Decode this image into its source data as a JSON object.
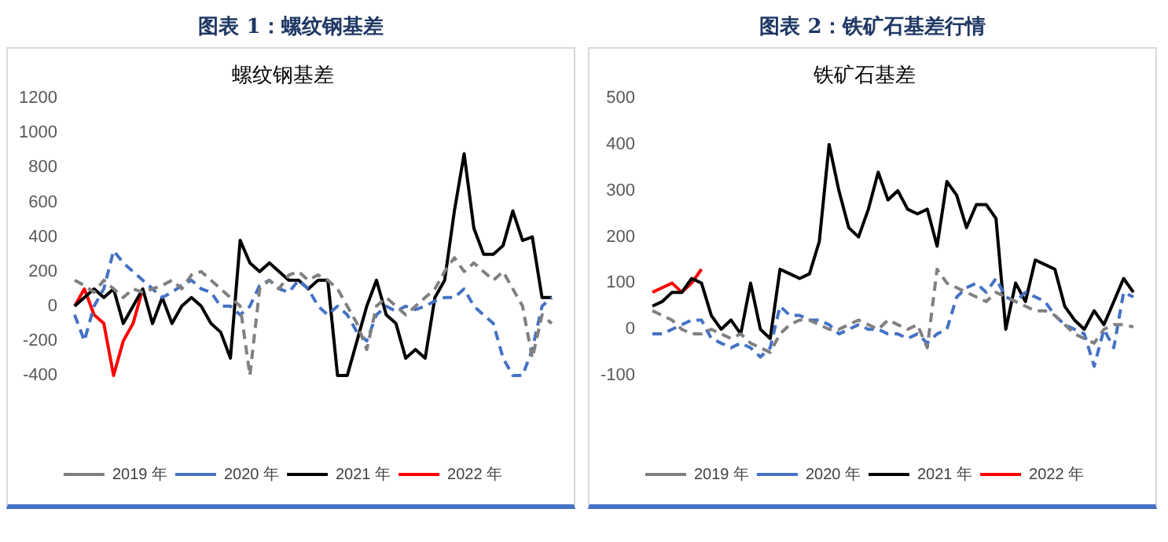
{
  "chart_data": [
    {
      "type": "line",
      "title": "图表 1：螺纹钢基差",
      "subtitle": "螺纹钢基差",
      "categories": [
        null,
        null,
        null,
        null,
        null,
        null,
        null,
        null,
        null,
        null,
        null,
        null,
        null,
        null,
        null,
        null,
        null,
        null,
        null,
        null,
        null,
        null,
        null,
        null,
        null,
        null,
        null,
        null,
        null,
        null,
        null,
        null,
        null,
        null,
        null,
        null,
        null,
        null,
        null,
        null,
        null,
        null,
        null,
        null,
        null,
        null,
        null,
        null,
        null,
        null
      ],
      "ylim": [
        -400,
        1200
      ],
      "yticks": [
        -400,
        -200,
        0,
        200,
        400,
        600,
        800,
        1000,
        1200
      ],
      "tick_labels": "y",
      "grid": false,
      "legend": "bottom",
      "marker": "none",
      "series": [
        {
          "name": "2019 年",
          "color": "#808080",
          "line_style": "dashed",
          "values": [
            150,
            120,
            80,
            150,
            100,
            50,
            100,
            80,
            100,
            120,
            150,
            100,
            180,
            200,
            150,
            100,
            50,
            0,
            -400,
            100,
            150,
            100,
            180,
            200,
            150,
            180,
            150,
            100,
            0,
            -100,
            -250,
            0,
            50,
            0,
            -50,
            0,
            50,
            100,
            200,
            280,
            200,
            250,
            200,
            150,
            200,
            100,
            0,
            -300,
            -50,
            -100
          ]
        },
        {
          "name": "2020 年",
          "color": "#4472c4",
          "line_style": "dashed",
          "values": [
            -50,
            -200,
            0,
            100,
            320,
            250,
            200,
            150,
            100,
            50,
            80,
            120,
            150,
            100,
            80,
            0,
            0,
            -50,
            0,
            120,
            150,
            100,
            80,
            150,
            100,
            0,
            -50,
            0,
            -50,
            -150,
            -200,
            -50,
            0,
            -30,
            0,
            -20,
            0,
            30,
            50,
            50,
            100,
            0,
            -50,
            -100,
            -300,
            -400,
            -400,
            -250,
            0,
            50
          ]
        },
        {
          "name": "2021 年",
          "color": "#000000",
          "line_style": "solid",
          "values": [
            0,
            50,
            100,
            50,
            100,
            -100,
            0,
            100,
            -100,
            50,
            -100,
            0,
            50,
            0,
            -100,
            -150,
            -300,
            380,
            250,
            200,
            250,
            200,
            150,
            150,
            100,
            150,
            150,
            -400,
            -400,
            -200,
            0,
            150,
            -50,
            -100,
            -300,
            -250,
            -300,
            50,
            150,
            550,
            880,
            450,
            300,
            300,
            350,
            550,
            380,
            400,
            50,
            50
          ]
        },
        {
          "name": "2022 年",
          "color": "#ff0000",
          "line_style": "solid",
          "values": [
            0,
            100,
            -50,
            -100,
            -400,
            -200,
            -100,
            100,
            null,
            null,
            null,
            null,
            null,
            null,
            null,
            null,
            null,
            null,
            null,
            null,
            null,
            null,
            null,
            null,
            null,
            null,
            null,
            null,
            null,
            null,
            null,
            null,
            null,
            null,
            null,
            null,
            null,
            null,
            null,
            null,
            null,
            null,
            null,
            null,
            null,
            null,
            null,
            null,
            null,
            null
          ]
        }
      ]
    },
    {
      "type": "line",
      "title": "图表 2：铁矿石基差行情",
      "subtitle": "铁矿石基差",
      "categories": [
        null,
        null,
        null,
        null,
        null,
        null,
        null,
        null,
        null,
        null,
        null,
        null,
        null,
        null,
        null,
        null,
        null,
        null,
        null,
        null,
        null,
        null,
        null,
        null,
        null,
        null,
        null,
        null,
        null,
        null,
        null,
        null,
        null,
        null,
        null,
        null,
        null,
        null,
        null,
        null,
        null,
        null,
        null,
        null,
        null,
        null,
        null,
        null,
        null,
        null
      ],
      "ylim": [
        -100,
        500
      ],
      "yticks": [
        -100,
        0,
        100,
        200,
        300,
        400,
        500
      ],
      "tick_labels": "y",
      "grid": false,
      "legend": "bottom",
      "marker": "none",
      "series": [
        {
          "name": "2019 年",
          "color": "#808080",
          "line_style": "dashed",
          "values": [
            40,
            30,
            20,
            0,
            -10,
            -10,
            0,
            -10,
            -20,
            -10,
            -30,
            -40,
            -50,
            -10,
            10,
            20,
            20,
            10,
            0,
            0,
            10,
            20,
            10,
            0,
            20,
            10,
            0,
            10,
            -40,
            130,
            100,
            90,
            80,
            70,
            60,
            80,
            70,
            60,
            50,
            40,
            40,
            30,
            10,
            -10,
            -20,
            -30,
            0,
            10,
            10,
            5
          ]
        },
        {
          "name": "2020 年",
          "color": "#4472c4",
          "line_style": "dashed",
          "values": [
            -10,
            -10,
            0,
            10,
            20,
            20,
            -20,
            -30,
            -40,
            -30,
            -40,
            -60,
            -40,
            50,
            30,
            30,
            20,
            20,
            10,
            -10,
            0,
            10,
            0,
            0,
            -10,
            -10,
            -20,
            -10,
            -30,
            -10,
            0,
            70,
            90,
            100,
            80,
            110,
            70,
            60,
            80,
            70,
            60,
            30,
            10,
            0,
            -10,
            -80,
            0,
            -40,
            80,
            70
          ]
        },
        {
          "name": "2021 年",
          "color": "#000000",
          "line_style": "solid",
          "values": [
            50,
            60,
            80,
            80,
            110,
            100,
            30,
            0,
            20,
            -10,
            100,
            0,
            -20,
            130,
            120,
            110,
            120,
            190,
            400,
            300,
            220,
            200,
            260,
            340,
            280,
            300,
            260,
            250,
            260,
            180,
            320,
            290,
            220,
            270,
            270,
            240,
            0,
            100,
            60,
            150,
            140,
            130,
            50,
            20,
            0,
            40,
            10,
            60,
            110,
            80
          ]
        },
        {
          "name": "2022 年",
          "color": "#ff0000",
          "line_style": "solid",
          "values": [
            80,
            90,
            100,
            80,
            100,
            130,
            null,
            null,
            null,
            null,
            null,
            null,
            null,
            null,
            null,
            null,
            null,
            null,
            null,
            null,
            null,
            null,
            null,
            null,
            null,
            null,
            null,
            null,
            null,
            null,
            null,
            null,
            null,
            null,
            null,
            null,
            null,
            null,
            null,
            null,
            null,
            null,
            null,
            null,
            null,
            null,
            null,
            null,
            null,
            null
          ]
        }
      ]
    }
  ]
}
